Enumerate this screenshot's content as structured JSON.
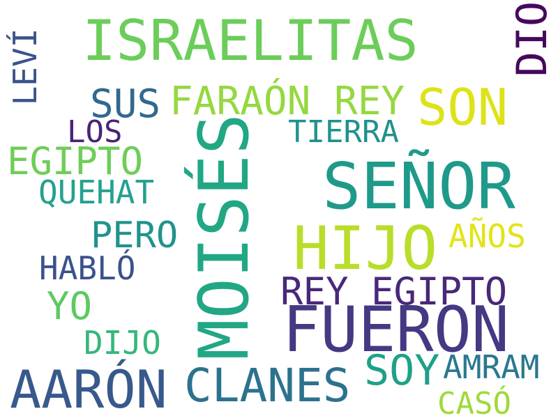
{
  "words": [
    {
      "text": "ISRAELITAS",
      "color": "#6ccd5a"
    },
    {
      "text": "DIO",
      "color": "#46085c"
    },
    {
      "text": "LEVÍ",
      "color": "#3b528b"
    },
    {
      "text": "SUS",
      "color": "#31688e"
    },
    {
      "text": "FARAÓN REY",
      "color": "#95d840"
    },
    {
      "text": "SON",
      "color": "#dde318"
    },
    {
      "text": "LOS",
      "color": "#482475"
    },
    {
      "text": "TIERRA",
      "color": "#21918c"
    },
    {
      "text": "EGIPTO",
      "color": "#6ece58"
    },
    {
      "text": "MOISÉS",
      "color": "#22a785"
    },
    {
      "text": "SEÑOR",
      "color": "#1f9a8a"
    },
    {
      "text": "QUEHAT",
      "color": "#25a18e"
    },
    {
      "text": "PERO",
      "color": "#20938c"
    },
    {
      "text": "HIJO",
      "color": "#b8de29"
    },
    {
      "text": "AÑOS",
      "color": "#e2e418"
    },
    {
      "text": "HABLÓ",
      "color": "#3b528b"
    },
    {
      "text": "REY EGIPTO",
      "color": "#482878"
    },
    {
      "text": "YO",
      "color": "#5ec962"
    },
    {
      "text": "FUERON",
      "color": "#443983"
    },
    {
      "text": "DIJO",
      "color": "#35b779"
    },
    {
      "text": "SOY",
      "color": "#1fa088"
    },
    {
      "text": "AMRAM",
      "color": "#2a788e"
    },
    {
      "text": "AARÓN",
      "color": "#38598c"
    },
    {
      "text": "CLANES",
      "color": "#2c728e"
    },
    {
      "text": "CASÓ",
      "color": "#9fda3a"
    }
  ]
}
